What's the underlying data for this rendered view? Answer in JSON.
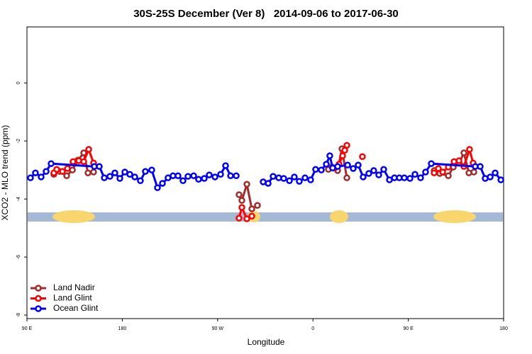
{
  "chart_data": {
    "type": "line",
    "title": "30S-25S December (Ver 8)   2014-09-06 to 2017-06-30",
    "x_label": "Longitude",
    "y_label": "XCO2 - MLO trend (ppm)",
    "xlim": [
      90,
      540
    ],
    "ylim": [
      -8.12,
      1.93
    ],
    "xticks": [
      {
        "value": 90,
        "label": "90 E"
      },
      {
        "value": 180,
        "label": "180"
      },
      {
        "value": 270,
        "label": "90 W"
      },
      {
        "value": 360,
        "label": "0"
      },
      {
        "value": 450,
        "label": "90 E"
      },
      {
        "value": 540,
        "label": "180"
      }
    ],
    "yticks": [
      0,
      -2,
      -4,
      -6,
      -8
    ],
    "legend": "lower left",
    "series": [
      {
        "name": "Land Nadir",
        "color": "#a52a2a",
        "x": [
          115.4,
          120.8,
          127.5,
          132.9,
          138.2,
          143.6,
          147.6,
          152.9,
          200,
          290.2,
          292.9,
          297.6,
          302.3,
          307.6,
          340,
          374.6,
          378.0,
          383.3,
          387.3,
          392.0,
          430,
          474.4,
          479.7,
          487.8,
          492.5,
          497.9,
          502.5,
          507.2,
          511.9
        ],
        "values": [
          -3.15,
          -3.05,
          -3.2,
          -3.0,
          -2.66,
          -2.41,
          -3.1,
          -3.07,
          null,
          -3.85,
          -4.05,
          -3.49,
          -4.34,
          -4.22,
          null,
          -2.98,
          -2.9,
          -3.02,
          -2.27,
          -3.27,
          null,
          -3.02,
          -3.12,
          -3.2,
          -2.9,
          -2.76,
          -2.41,
          -3.1,
          -3.07
        ]
      },
      {
        "name": "Land Glint",
        "color": "#ff0000",
        "x": [
          115.4,
          118.1,
          123.5,
          128.2,
          133.5,
          138.9,
          143.6,
          148.3,
          152.9,
          200,
          290.2,
          292.9,
          297.6,
          302.3,
          340,
          380.6,
          384.6,
          388.0,
          390.0,
          392.0,
          400,
          406.7,
          460,
          474.4,
          478.4,
          482.5,
          487.8,
          493.2,
          497.9,
          502.5,
          507.8,
          511.2
        ],
        "values": [
          -3.1,
          -2.98,
          -3.05,
          -2.95,
          -2.71,
          -2.68,
          -2.71,
          -2.29,
          -2.76,
          null,
          -4.66,
          -4.29,
          -4.68,
          -4.59,
          null,
          -2.93,
          -2.8,
          -2.51,
          -2.32,
          -2.15,
          null,
          -2.54,
          null,
          -3.1,
          -2.95,
          -3.07,
          -2.9,
          -2.71,
          -2.68,
          -2.88,
          -2.29,
          -2.76
        ]
      },
      {
        "name": "Ocean Glint",
        "color": "#0000ff",
        "x": [
          93.3,
          98.0,
          103.4,
          108.1,
          112.8,
          153.6,
          158.3,
          163.0,
          168.3,
          173.0,
          177.7,
          182.4,
          187.1,
          191.8,
          197.1,
          201.8,
          207.8,
          213.2,
          217.9,
          223.2,
          227.9,
          232.6,
          237.3,
          242.0,
          247.4,
          252.0,
          257.4,
          262.1,
          267.5,
          272.8,
          277.5,
          282.2,
          287.6,
          300,
          313.0,
          317.7,
          322.4,
          327.7,
          332.4,
          337.8,
          342.4,
          347.1,
          352.5,
          357.8,
          362.5,
          367.9,
          372.6,
          375.9,
          378.6,
          383.3,
          392.7,
          398.0,
          402.7,
          407.4,
          412.7,
          417.4,
          422.1,
          426.8,
          432.2,
          436.9,
          441.5,
          446.2,
          451.6,
          456.3,
          461.6,
          466.3,
          471.7,
          513.2,
          517.9,
          522.6,
          527.3,
          532.0,
          537.4
        ],
        "values": [
          -3.27,
          -3.1,
          -3.24,
          -3.05,
          -2.78,
          -2.88,
          -2.88,
          -3.27,
          -3.22,
          -3.1,
          -3.29,
          -3.07,
          -3.15,
          -3.24,
          -3.37,
          -3.05,
          -3.0,
          -3.61,
          -3.46,
          -3.27,
          -3.2,
          -3.2,
          -3.37,
          -3.22,
          -3.2,
          -3.32,
          -3.29,
          -3.17,
          -3.24,
          -3.15,
          -2.85,
          -3.2,
          -3.2,
          null,
          -3.41,
          -3.46,
          -3.22,
          -3.27,
          -3.29,
          -3.37,
          -3.24,
          -3.39,
          -3.27,
          -3.34,
          -2.98,
          -3.0,
          -2.8,
          -2.51,
          -2.93,
          -2.88,
          -2.83,
          -2.95,
          -2.83,
          -3.24,
          -3.12,
          -3.02,
          -3.17,
          -2.98,
          -3.34,
          -3.27,
          -3.27,
          -3.27,
          -3.29,
          -3.15,
          -3.27,
          -3.07,
          -2.78,
          -2.88,
          -2.88,
          -3.29,
          -3.24,
          -3.1,
          -3.34
        ]
      }
    ]
  }
}
